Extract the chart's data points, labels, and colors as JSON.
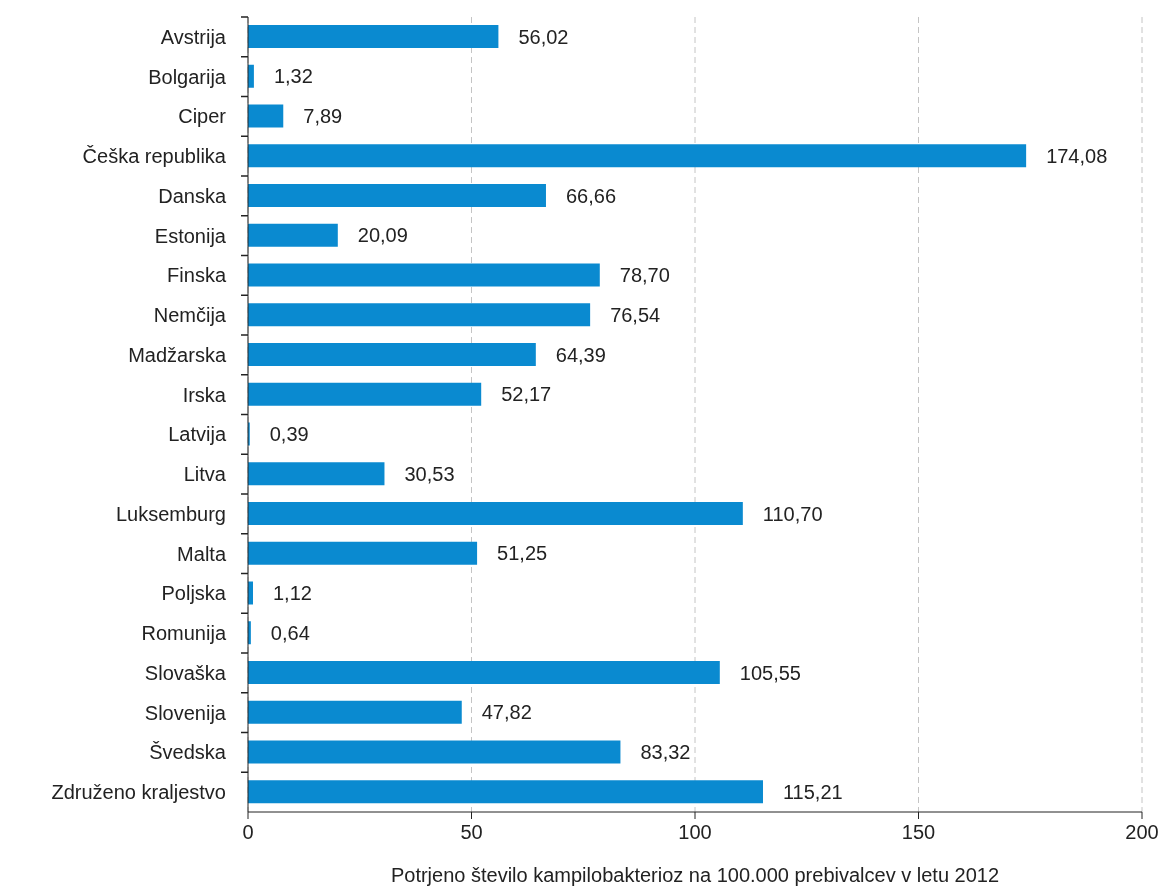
{
  "chart_data": {
    "type": "bar",
    "orientation": "horizontal",
    "xlabel": "Potrjeno število kampilobakterioz na 100.000 prebivalcev v letu 2012",
    "categories": [
      "Avstrija",
      "Bolgarija",
      "Ciper",
      "Češka republika",
      "Danska",
      "Estonija",
      "Finska",
      "Nemčija",
      "Madžarska",
      "Irska",
      "Latvija",
      "Litva",
      "Luksemburg",
      "Malta",
      "Poljska",
      "Romunija",
      "Slovaška",
      "Slovenija",
      "Švedska",
      "Združeno kraljestvo"
    ],
    "values": [
      56.02,
      1.32,
      7.89,
      174.08,
      66.66,
      20.09,
      78.7,
      76.54,
      64.39,
      52.17,
      0.39,
      30.53,
      110.7,
      51.25,
      1.12,
      0.64,
      105.55,
      47.82,
      83.32,
      115.21
    ],
    "value_labels": [
      "56,02",
      "1,32",
      "7,89",
      "174,08",
      "66,66",
      "20,09",
      "78,70",
      "76,54",
      "64,39",
      "52,17",
      "0,39",
      "30,53",
      "110,70",
      "51,25",
      "1,12",
      "0,64",
      "105,55",
      "47,82",
      "83,32",
      "115,21"
    ],
    "color": "#0a8ad0",
    "xlim": [
      0,
      200
    ],
    "xticks": [
      0,
      50,
      100,
      150,
      200
    ],
    "grid": "x"
  }
}
